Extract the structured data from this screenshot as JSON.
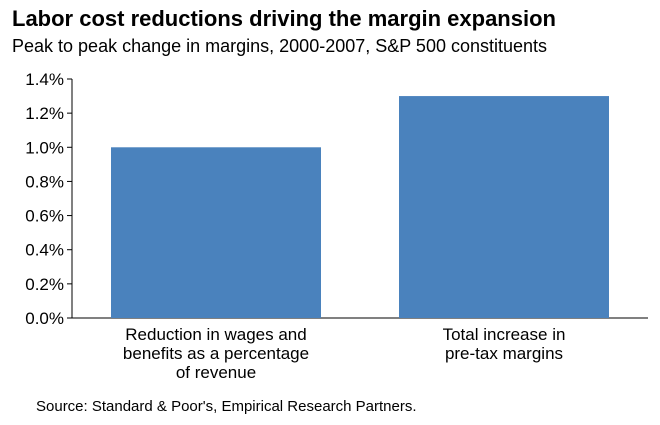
{
  "chart_data": {
    "type": "bar",
    "title": "Labor cost reductions driving the margin expansion",
    "subtitle": "Peak to peak change in margins, 2000-2007, S&P 500 constituents",
    "categories": [
      [
        "Reduction in wages and",
        "benefits as a percentage",
        "of revenue"
      ],
      [
        "Total increase in",
        "pre-tax margins"
      ]
    ],
    "values": [
      1.0,
      1.3
    ],
    "ylim": [
      0,
      1.4
    ],
    "yticks": [
      0,
      0.2,
      0.4,
      0.6,
      0.8,
      1.0,
      1.2,
      1.4
    ],
    "ytick_labels": [
      "0.0%",
      "0.2%",
      "0.4%",
      "0.6%",
      "0.8%",
      "1.0%",
      "1.2%",
      "1.4%"
    ],
    "bar_color": "#4a82bd",
    "grid": false,
    "xlabel": "",
    "ylabel": ""
  },
  "source": "Source: Standard & Poor's, Empirical Research Partners."
}
